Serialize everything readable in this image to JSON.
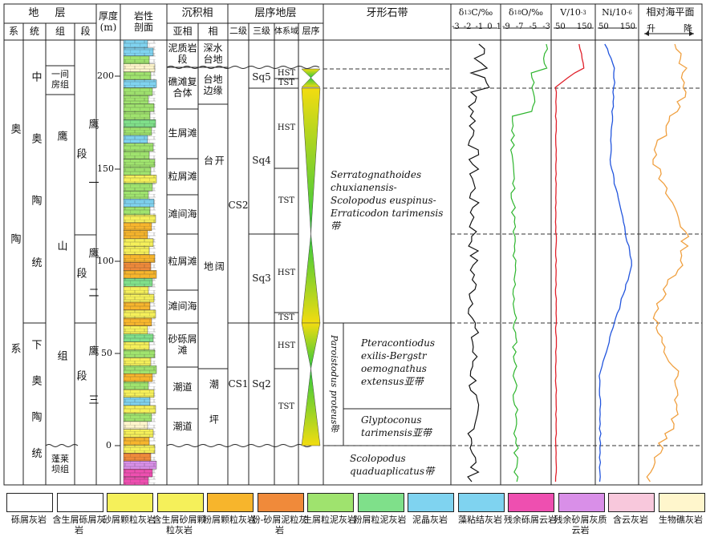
{
  "header": {
    "stratum": "地 层",
    "sys": "系",
    "series": "统",
    "group": "组",
    "segment": "段",
    "thickness": "厚度 (m)",
    "lith": "岩性 剖面",
    "facies": "沉积相",
    "subfacies": "亚相",
    "facies_col": "相",
    "seq": "层序地层",
    "second": "二级",
    "third": "三级",
    "tract": "体系域",
    "seq_order": "层序",
    "conodont": "牙形石带",
    "c13": "δ13C/‰",
    "o18": "δ18O/‰",
    "v": "V/10-3",
    "ni": "Ni/10-6",
    "sea": "相对海平面",
    "sea_up": "升",
    "sea_down": "降"
  },
  "axes": {
    "c13_ticks": [
      "-3",
      "-2",
      "-1",
      "0",
      "1"
    ],
    "o18_ticks": [
      "-9",
      "-7",
      "-5",
      "-3"
    ],
    "v_ticks": [
      "50",
      "150"
    ],
    "ni_ticks": [
      "50",
      "150"
    ],
    "depth_ticks": [
      "200",
      "150",
      "100",
      "50",
      "0"
    ]
  },
  "strat": {
    "system": "奥 陶 系",
    "series_mid": "中 奥 陶 统",
    "series_low": "下 奥 陶 统",
    "group_yijian": "一间房组",
    "group_ying": "鹰 山 组",
    "group_penglai": "蓬莱坝组",
    "seg1": "鹰 一 段",
    "seg2": "鹰 二 段",
    "seg3": "鹰 三 段"
  },
  "subfacies": [
    "泥质岩段",
    "礁滩复合体",
    "生屑滩",
    "粒屑滩",
    "滩间海",
    "粒屑滩",
    "滩间海",
    "砂砾屑滩",
    "潮道",
    "潮道"
  ],
  "facies": [
    "深水台地",
    "台地边缘",
    "开 阔 台 地",
    "潮 坪"
  ],
  "sequence": {
    "cs2": "CS2",
    "cs1": "CS1",
    "sq5": "Sq5",
    "sq4": "Sq4",
    "sq3": "Sq3",
    "sq2": "Sq2",
    "tracts": [
      "HST",
      "TST",
      "HST",
      "TST",
      "HST",
      "TST",
      "HST",
      "TST"
    ]
  },
  "conodont": {
    "zone_upper": "Serratognathoides chuxianensis-Scolopodus euspinus-Erraticodon tarimensis带",
    "zone_proteus": "Paroistodus proteus带",
    "sub1": "Pteracontiodus exilis-Bergstr oemognathus extensus亚带",
    "sub2": "Glyptoconus tarimensis亚带",
    "zone_lower": "Scolopodus quaduaplicatus带"
  },
  "colors": {
    "c13": "#111111",
    "o18": "#2db52d",
    "v": "#e0202a",
    "ni": "#2255dd",
    "sea": "#f0a040",
    "seq_green": "#2ec940",
    "seq_yellow": "#f2dc10"
  },
  "legend": [
    {
      "name": "砾屑灰岩",
      "icon": "gravel-limestone-pattern",
      "color": "#ffffff"
    },
    {
      "name": "含生屑砾屑灰岩",
      "icon": "bioclast-gravel-pattern",
      "color": "#ffffff"
    },
    {
      "name": "砂屑颗粒灰岩",
      "icon": "sandy-grain-pattern",
      "color": "#f5f05a"
    },
    {
      "name": "含生屑砂屑颗粒灰岩",
      "icon": "bioclast-sandy-pattern",
      "color": "#f5f05a"
    },
    {
      "name": "粉屑颗粒灰岩",
      "icon": "silty-grain-pattern",
      "color": "#f7b52c"
    },
    {
      "name": "粉-砂屑泥粒灰岩",
      "icon": "silt-sand-mud-pattern",
      "color": "#f08a3a"
    },
    {
      "name": "生屑粒泥灰岩",
      "icon": "bioclast-wacke-pattern",
      "color": "#9fe36e"
    },
    {
      "name": "粉屑粒泥灰岩",
      "icon": "silty-wacke-pattern",
      "color": "#7fe08a"
    },
    {
      "name": "泥晶灰岩",
      "icon": "micrite-pattern",
      "color": "#7fd3f0"
    },
    {
      "name": "藻粘结灰岩",
      "icon": "algal-pattern",
      "color": "#7fd3f0"
    },
    {
      "name": "残余砾屑云岩",
      "icon": "residual-gravel-dolomite-pattern",
      "color": "#ee4fb0"
    },
    {
      "name": "残余砂屑灰质云岩",
      "icon": "residual-sandy-dolomite-pattern",
      "color": "#d98fe8"
    },
    {
      "name": "含云灰岩",
      "icon": "dolomitic-limestone-pattern",
      "color": "#f8c8dc"
    },
    {
      "name": "生物礁灰岩",
      "icon": "reef-pattern",
      "color": "#fff6cc"
    }
  ]
}
